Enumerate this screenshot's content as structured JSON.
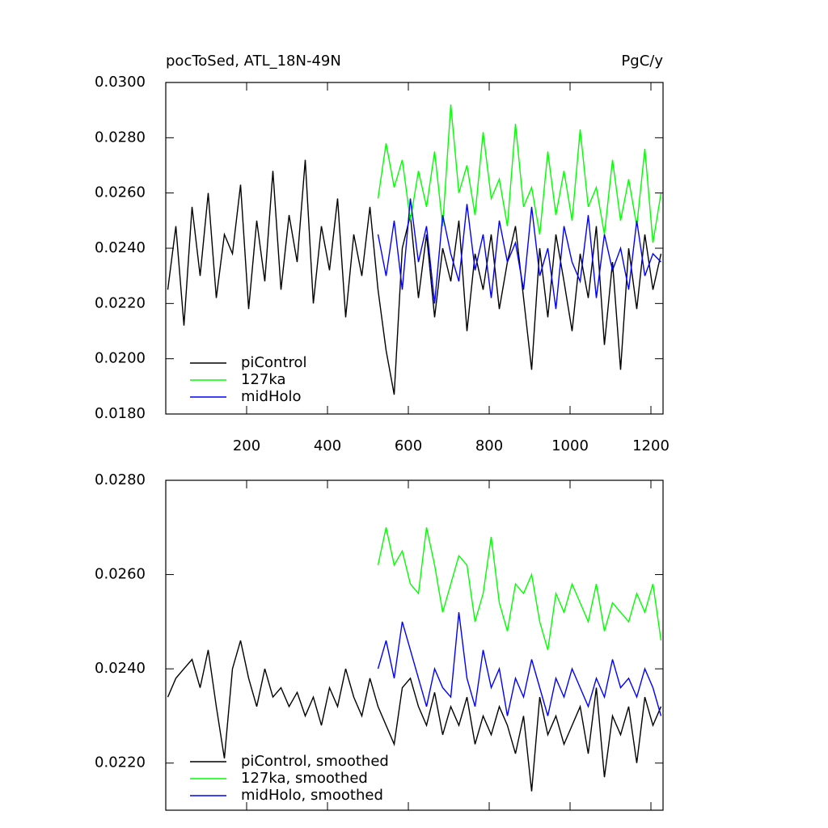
{
  "chart_data": [
    {
      "type": "line",
      "title": "pocToSed, ATL_18N-49N",
      "units": "PgC/y",
      "xlim": [
        0,
        1230
      ],
      "xticks": [
        200,
        400,
        600,
        800,
        1000,
        1200
      ],
      "ylim": [
        0.018,
        0.03
      ],
      "yticks": [
        {
          "value": 0.018,
          "label": "0.0180"
        },
        {
          "value": 0.02,
          "label": "0.0200"
        },
        {
          "value": 0.022,
          "label": "0.0220"
        },
        {
          "value": 0.024,
          "label": "0.0240"
        },
        {
          "value": 0.026,
          "label": "0.0260"
        },
        {
          "value": 0.028,
          "label": "0.0280"
        },
        {
          "value": 0.03,
          "label": "0.0300"
        }
      ],
      "series": [
        {
          "name": "piControl",
          "color": "#000000",
          "x": [
            5,
            25,
            45,
            65,
            85,
            105,
            125,
            145,
            165,
            185,
            205,
            225,
            245,
            265,
            285,
            305,
            325,
            345,
            365,
            385,
            405,
            425,
            445,
            465,
            485,
            505,
            525,
            545,
            565,
            585,
            605,
            625,
            645,
            665,
            685,
            705,
            725,
            745,
            765,
            785,
            805,
            825,
            845,
            865,
            885,
            905,
            925,
            945,
            965,
            985,
            1005,
            1025,
            1045,
            1065,
            1085,
            1105,
            1125,
            1145,
            1165,
            1185,
            1205,
            1225
          ],
          "values": [
            0.0225,
            0.0248,
            0.0212,
            0.0255,
            0.023,
            0.026,
            0.0222,
            0.0245,
            0.0238,
            0.0263,
            0.0218,
            0.025,
            0.0228,
            0.0268,
            0.0225,
            0.0252,
            0.0235,
            0.0272,
            0.022,
            0.0248,
            0.0232,
            0.0258,
            0.0215,
            0.0245,
            0.023,
            0.0255,
            0.0225,
            0.0203,
            0.0187,
            0.024,
            0.0252,
            0.0222,
            0.0245,
            0.0215,
            0.024,
            0.0228,
            0.025,
            0.021,
            0.0238,
            0.0225,
            0.0245,
            0.0218,
            0.0235,
            0.0248,
            0.0222,
            0.0196,
            0.024,
            0.0215,
            0.0245,
            0.0228,
            0.021,
            0.0238,
            0.0222,
            0.0248,
            0.0205,
            0.0235,
            0.0196,
            0.024,
            0.0218,
            0.0245,
            0.0225,
            0.0238
          ]
        },
        {
          "name": "127ka",
          "color": "#00ff00",
          "x": [
            525,
            545,
            565,
            585,
            605,
            625,
            645,
            665,
            685,
            705,
            725,
            745,
            765,
            785,
            805,
            825,
            845,
            865,
            885,
            905,
            925,
            945,
            965,
            985,
            1005,
            1025,
            1045,
            1065,
            1085,
            1105,
            1125,
            1145,
            1165,
            1185,
            1205,
            1225
          ],
          "values": [
            0.0258,
            0.0278,
            0.0262,
            0.0272,
            0.025,
            0.0268,
            0.0255,
            0.0275,
            0.0248,
            0.0292,
            0.026,
            0.027,
            0.0252,
            0.0282,
            0.0258,
            0.0265,
            0.0248,
            0.0285,
            0.0255,
            0.0262,
            0.0245,
            0.0275,
            0.0252,
            0.0268,
            0.025,
            0.0283,
            0.0255,
            0.0262,
            0.0245,
            0.0272,
            0.025,
            0.0265,
            0.0248,
            0.0276,
            0.0242,
            0.026
          ]
        },
        {
          "name": "midHolo",
          "color": "#0000ff",
          "x": [
            525,
            545,
            565,
            585,
            605,
            625,
            645,
            665,
            685,
            705,
            725,
            745,
            765,
            785,
            805,
            825,
            845,
            865,
            885,
            905,
            925,
            945,
            965,
            985,
            1005,
            1025,
            1045,
            1065,
            1085,
            1105,
            1125,
            1145,
            1165,
            1185,
            1205,
            1225
          ],
          "values": [
            0.0245,
            0.023,
            0.025,
            0.0225,
            0.0258,
            0.0235,
            0.0248,
            0.022,
            0.0252,
            0.0238,
            0.0228,
            0.0256,
            0.0232,
            0.0245,
            0.0222,
            0.025,
            0.0235,
            0.0242,
            0.0225,
            0.0255,
            0.023,
            0.024,
            0.0218,
            0.0248,
            0.0235,
            0.0228,
            0.0252,
            0.0222,
            0.0245,
            0.0232,
            0.024,
            0.0225,
            0.025,
            0.023,
            0.0238,
            0.0235
          ]
        }
      ]
    },
    {
      "type": "line",
      "xlim": [
        0,
        1230
      ],
      "ylim": [
        0.021,
        0.028
      ],
      "yticks": [
        {
          "value": 0.022,
          "label": "0.0220"
        },
        {
          "value": 0.024,
          "label": "0.0240"
        },
        {
          "value": 0.026,
          "label": "0.0260"
        },
        {
          "value": 0.028,
          "label": "0.0280"
        }
      ],
      "series": [
        {
          "name": "piControl, smoothed",
          "color": "#000000",
          "x": [
            5,
            25,
            45,
            65,
            85,
            105,
            125,
            145,
            165,
            185,
            205,
            225,
            245,
            265,
            285,
            305,
            325,
            345,
            365,
            385,
            405,
            425,
            445,
            465,
            485,
            505,
            525,
            545,
            565,
            585,
            605,
            625,
            645,
            665,
            685,
            705,
            725,
            745,
            765,
            785,
            805,
            825,
            845,
            865,
            885,
            905,
            925,
            945,
            965,
            985,
            1005,
            1025,
            1045,
            1065,
            1085,
            1105,
            1125,
            1145,
            1165,
            1185,
            1205,
            1225
          ],
          "values": [
            0.0234,
            0.0238,
            0.024,
            0.0242,
            0.0236,
            0.0244,
            0.0232,
            0.0221,
            0.024,
            0.0246,
            0.0238,
            0.0232,
            0.024,
            0.0234,
            0.0236,
            0.0232,
            0.0235,
            0.023,
            0.0234,
            0.0228,
            0.0236,
            0.0232,
            0.024,
            0.0234,
            0.023,
            0.0238,
            0.0232,
            0.0228,
            0.0224,
            0.0236,
            0.0238,
            0.0232,
            0.0228,
            0.0235,
            0.0226,
            0.0232,
            0.0228,
            0.0234,
            0.0224,
            0.023,
            0.0226,
            0.0232,
            0.0228,
            0.0222,
            0.023,
            0.0214,
            0.0234,
            0.0226,
            0.023,
            0.0224,
            0.0228,
            0.0232,
            0.0222,
            0.0236,
            0.0217,
            0.023,
            0.0226,
            0.0232,
            0.022,
            0.0234,
            0.0228,
            0.0232
          ]
        },
        {
          "name": "127ka, smoothed",
          "color": "#00ff00",
          "x": [
            525,
            545,
            565,
            585,
            605,
            625,
            645,
            665,
            685,
            705,
            725,
            745,
            765,
            785,
            805,
            825,
            845,
            865,
            885,
            905,
            925,
            945,
            965,
            985,
            1005,
            1025,
            1045,
            1065,
            1085,
            1105,
            1125,
            1145,
            1165,
            1185,
            1205,
            1225
          ],
          "values": [
            0.0262,
            0.027,
            0.0262,
            0.0265,
            0.0258,
            0.0256,
            0.027,
            0.0262,
            0.0252,
            0.0258,
            0.0264,
            0.0262,
            0.025,
            0.0256,
            0.0268,
            0.0254,
            0.0248,
            0.0258,
            0.0256,
            0.026,
            0.025,
            0.0244,
            0.0256,
            0.0252,
            0.0258,
            0.0254,
            0.025,
            0.0258,
            0.0248,
            0.0254,
            0.0252,
            0.025,
            0.0256,
            0.0252,
            0.0258,
            0.0246
          ]
        },
        {
          "name": "midHolo, smoothed",
          "color": "#0000ff",
          "x": [
            525,
            545,
            565,
            585,
            605,
            625,
            645,
            665,
            685,
            705,
            725,
            745,
            765,
            785,
            805,
            825,
            845,
            865,
            885,
            905,
            925,
            945,
            965,
            985,
            1005,
            1025,
            1045,
            1065,
            1085,
            1105,
            1125,
            1145,
            1165,
            1185,
            1205,
            1225
          ],
          "values": [
            0.024,
            0.0246,
            0.0238,
            0.025,
            0.0244,
            0.0238,
            0.0232,
            0.024,
            0.0236,
            0.0234,
            0.0252,
            0.0238,
            0.0232,
            0.0244,
            0.0236,
            0.024,
            0.023,
            0.0238,
            0.0234,
            0.0242,
            0.0236,
            0.023,
            0.0238,
            0.0234,
            0.024,
            0.0236,
            0.0232,
            0.0238,
            0.0234,
            0.0242,
            0.0236,
            0.0238,
            0.0234,
            0.024,
            0.0236,
            0.023
          ]
        }
      ]
    }
  ]
}
